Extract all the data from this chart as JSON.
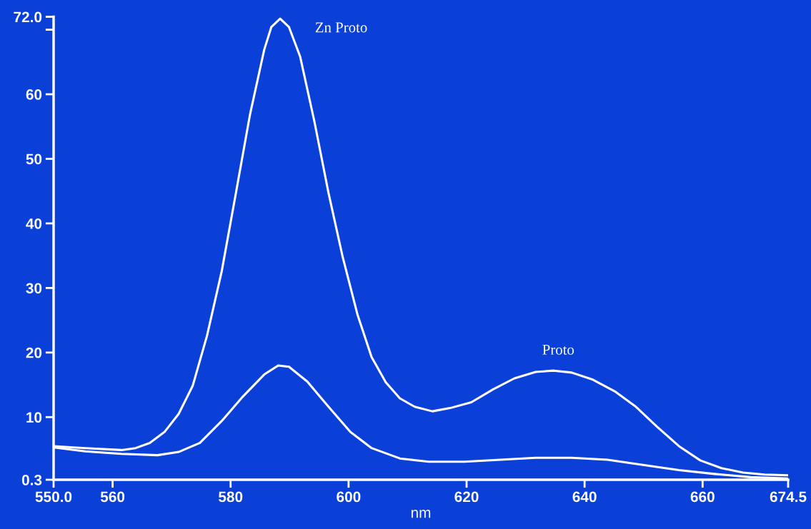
{
  "chart_data": {
    "type": "line",
    "xlabel": "nm",
    "xlim": [
      550,
      674.5
    ],
    "ylim": [
      0.3,
      72
    ],
    "xticks": [
      {
        "value": 550,
        "label": "550.0"
      },
      560,
      580,
      600,
      620,
      640,
      660,
      {
        "value": 674.5,
        "label": "674.5"
      }
    ],
    "yticks": [
      {
        "value": 0.3,
        "label": "0.3"
      },
      10,
      20,
      30,
      40,
      50,
      60,
      {
        "value": 70,
        "label": null
      },
      {
        "value": 72,
        "label": "72.0"
      }
    ],
    "grid": false,
    "legend": false,
    "marker": "none",
    "line_style": "solid",
    "series": [
      {
        "color": "#ffffff",
        "x": [
          550,
          555.4,
          561.5,
          563.9,
          566.3,
          568.8,
          571.2,
          573.6,
          576,
          578.5,
          580.9,
          583.3,
          585.7,
          586.9,
          588.4,
          589.9,
          591.8,
          594.2,
          596.6,
          599,
          601.5,
          603.9,
          606.3,
          608.7,
          611.2,
          614.2,
          617.2,
          620.8,
          624.5,
          628.1,
          631.7,
          634.8,
          637.8,
          641.4,
          645.1,
          648.7,
          652.3,
          656,
          659.6,
          663.2,
          666.9,
          670.5,
          674.5
        ],
        "values": [
          5.5,
          5.2,
          4.9,
          5.2,
          6.0,
          7.7,
          10.5,
          14.9,
          22.6,
          32.6,
          44.7,
          56.9,
          66.9,
          70.4,
          71.7,
          70.4,
          65.8,
          55.8,
          44.7,
          34.8,
          25.9,
          19.3,
          15.4,
          12.9,
          11.6,
          10.9,
          11.4,
          12.3,
          14.3,
          16.0,
          17.0,
          17.2,
          16.9,
          15.8,
          14.0,
          11.6,
          8.5,
          5.5,
          3.3,
          2.1,
          1.4,
          1.1,
          1.0
        ]
      },
      {
        "color": "#ffffff",
        "x": [
          550,
          555.4,
          561.5,
          567.6,
          571.2,
          574.8,
          578.5,
          582.1,
          585.7,
          588.1,
          589.9,
          593,
          596.6,
          600.3,
          603.9,
          608.7,
          613.6,
          619.6,
          625.7,
          631.7,
          637.8,
          643.9,
          649.9,
          656,
          662,
          668.1,
          674.5
        ],
        "values": [
          5.3,
          4.7,
          4.3,
          4.1,
          4.6,
          6.0,
          9.4,
          13.2,
          16.6,
          18.0,
          17.8,
          15.5,
          11.6,
          7.7,
          5.2,
          3.6,
          3.1,
          3.1,
          3.4,
          3.7,
          3.7,
          3.4,
          2.6,
          1.8,
          1.2,
          0.7,
          0.5
        ]
      }
    ],
    "annotations": [
      {
        "text": "Zn Proto",
        "x": 588.4,
        "y": 71.7
      },
      {
        "text": "Proto",
        "x": 634.8,
        "y": 17.2
      }
    ]
  }
}
